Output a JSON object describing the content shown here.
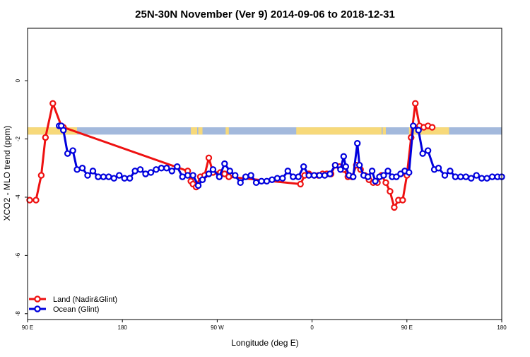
{
  "chart_data": {
    "type": "line",
    "title": "25N-30N November (Ver 9)   2014-09-06 to 2018-12-31",
    "xlabel": "Longitude (deg E)",
    "ylabel": "XCO2 - MLO trend (ppm)",
    "xlim": [
      90,
      540
    ],
    "ylim": [
      -8.2,
      1.8
    ],
    "x_ticks": [
      {
        "value": 90,
        "label": "90 E"
      },
      {
        "value": 180,
        "label": "180"
      },
      {
        "value": 270,
        "label": "90 W"
      },
      {
        "value": 360,
        "label": "0"
      },
      {
        "value": 450,
        "label": "90 E"
      },
      {
        "value": 540,
        "label": "180"
      }
    ],
    "y_ticks": [
      {
        "value": 0,
        "label": "0"
      },
      {
        "value": -2,
        "label": "-2"
      },
      {
        "value": -4,
        "label": "-4"
      },
      {
        "value": -6,
        "label": "-6"
      },
      {
        "value": -8,
        "label": "-8"
      }
    ],
    "legend": {
      "position": "bottom-left"
    },
    "land_ocean_strip": {
      "y_range": [
        -1.6,
        -1.85
      ],
      "ocean_color": "#a3b9dc",
      "land_color": "#f7d97a",
      "land_segments": [
        [
          90,
          137
        ],
        [
          245,
          251
        ],
        [
          252,
          256
        ],
        [
          278,
          281
        ],
        [
          345,
          426
        ],
        [
          427,
          430
        ],
        [
          452,
          490
        ]
      ]
    },
    "series": [
      {
        "name": "Land (Nadir&Glint)",
        "color": "#ee1111",
        "x": [
          92,
          98,
          103,
          107,
          114,
          122,
          124,
          242,
          245,
          247,
          250,
          254,
          258,
          262,
          266,
          273,
          277,
          281,
          349,
          353,
          357,
          362,
          366,
          370,
          374,
          378,
          382,
          386,
          390,
          394,
          398,
          402,
          406,
          410,
          414,
          418,
          422,
          426,
          430,
          434,
          438,
          442,
          446,
          450,
          454,
          458,
          462,
          466,
          470,
          474
        ],
        "y": [
          -4.1,
          -4.1,
          -3.25,
          -1.95,
          -0.78,
          -1.55,
          -1.6,
          -3.1,
          -3.45,
          -3.55,
          -3.65,
          -3.3,
          -3.25,
          -2.65,
          -3.15,
          -3.15,
          -3.2,
          -3.3,
          -3.55,
          -3.25,
          -3.2,
          -3.25,
          -3.25,
          -3.2,
          -3.2,
          -3.2,
          -2.9,
          -2.95,
          -3.05,
          -3.3,
          -3.3,
          -2.9,
          -3.05,
          -3.25,
          -3.4,
          -3.5,
          -3.5,
          -3.25,
          -3.5,
          -3.8,
          -4.35,
          -4.1,
          -4.1,
          -3.25,
          -1.95,
          -0.78,
          -1.55,
          -1.6,
          -1.55,
          -1.6
        ]
      },
      {
        "name": "Ocean (Glint)",
        "color": "#0000dd",
        "x": [
          120,
          122,
          124,
          128,
          133,
          137,
          142,
          147,
          152,
          157,
          162,
          167,
          172,
          177,
          182,
          187,
          192,
          197,
          202,
          207,
          212,
          217,
          222,
          227,
          232,
          237,
          242,
          247,
          252,
          256,
          262,
          266,
          272,
          277,
          282,
          287,
          292,
          297,
          302,
          307,
          312,
          317,
          322,
          327,
          332,
          337,
          342,
          347,
          352,
          357,
          362,
          367,
          372,
          377,
          382,
          387,
          390,
          392,
          395,
          399,
          403,
          405,
          409,
          413,
          417,
          420,
          424,
          428,
          432,
          436,
          440,
          444,
          448,
          452,
          456,
          461,
          465,
          470,
          476,
          480,
          486,
          491,
          496,
          501,
          506,
          511,
          516,
          521,
          526,
          531,
          536,
          540
        ],
        "y": [
          -1.55,
          -1.55,
          -1.7,
          -2.5,
          -2.4,
          -3.05,
          -3.0,
          -3.25,
          -3.1,
          -3.3,
          -3.3,
          -3.3,
          -3.35,
          -3.25,
          -3.35,
          -3.35,
          -3.1,
          -3.05,
          -3.2,
          -3.15,
          -3.05,
          -3.0,
          -3.0,
          -3.1,
          -2.95,
          -3.3,
          -3.25,
          -3.25,
          -3.6,
          -3.4,
          -3.2,
          -3.05,
          -3.3,
          -2.85,
          -3.1,
          -3.25,
          -3.5,
          -3.3,
          -3.25,
          -3.5,
          -3.45,
          -3.45,
          -3.4,
          -3.35,
          -3.35,
          -3.1,
          -3.3,
          -3.3,
          -2.95,
          -3.25,
          -3.25,
          -3.25,
          -3.25,
          -3.2,
          -2.9,
          -3.05,
          -2.6,
          -2.95,
          -3.25,
          -3.3,
          -2.15,
          -2.9,
          -3.25,
          -3.3,
          -3.1,
          -3.45,
          -3.3,
          -3.25,
          -3.1,
          -3.3,
          -3.3,
          -3.2,
          -3.1,
          -3.15,
          -1.55,
          -1.7,
          -2.5,
          -2.4,
          -3.05,
          -3.0,
          -3.25,
          -3.1,
          -3.3,
          -3.3,
          -3.3,
          -3.35,
          -3.25,
          -3.35,
          -3.35,
          -3.3,
          -3.3,
          -3.3
        ]
      }
    ]
  }
}
